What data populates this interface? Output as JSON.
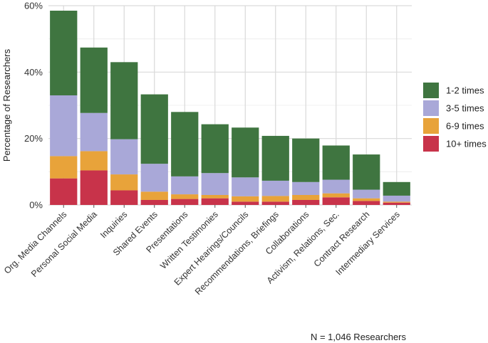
{
  "chart_data": {
    "type": "bar",
    "stacked": true,
    "ylabel": "Percentage of Researchers",
    "xlabel": "",
    "ylim": [
      0,
      60
    ],
    "y_ticks": [
      0,
      20,
      40,
      60
    ],
    "y_tick_labels": [
      "0%",
      "20%",
      "40%",
      "60%"
    ],
    "grid": true,
    "legend_position": "right",
    "caption": "N = 1,046 Researchers",
    "categories": [
      "Org. Media Channels",
      "Personal Social Media",
      "Inquiries",
      "Shared Events",
      "Presentations",
      "Written Testimonies",
      "Expert Hearings/Councils",
      "Recommendations, Briefings",
      "Collaborations",
      "Activism, Relations, Sec.",
      "Contract Research",
      "Intermediary Services"
    ],
    "series": [
      {
        "name": "10+ times",
        "color": "#c8334a",
        "values": [
          8.0,
          10.4,
          4.4,
          1.5,
          1.8,
          2.0,
          1.0,
          1.0,
          1.5,
          2.3,
          1.2,
          0.7
        ]
      },
      {
        "name": "6-9 times",
        "color": "#e8a33a",
        "values": [
          6.7,
          5.8,
          4.8,
          2.5,
          1.4,
          1.0,
          1.6,
          1.7,
          1.5,
          1.2,
          0.8,
          0.3
        ]
      },
      {
        "name": "3-5 times",
        "color": "#a9a8d8",
        "values": [
          18.3,
          11.5,
          10.6,
          8.4,
          5.4,
          6.6,
          5.7,
          4.6,
          3.9,
          4.1,
          2.6,
          1.8
        ]
      },
      {
        "name": "1-2 times",
        "color": "#3f7540",
        "values": [
          25.5,
          19.7,
          23.2,
          20.9,
          19.4,
          14.7,
          15.0,
          13.5,
          13.1,
          10.3,
          10.6,
          4.1
        ]
      }
    ],
    "legend_order": [
      "1-2 times",
      "3-5 times",
      "6-9 times",
      "10+ times"
    ]
  }
}
